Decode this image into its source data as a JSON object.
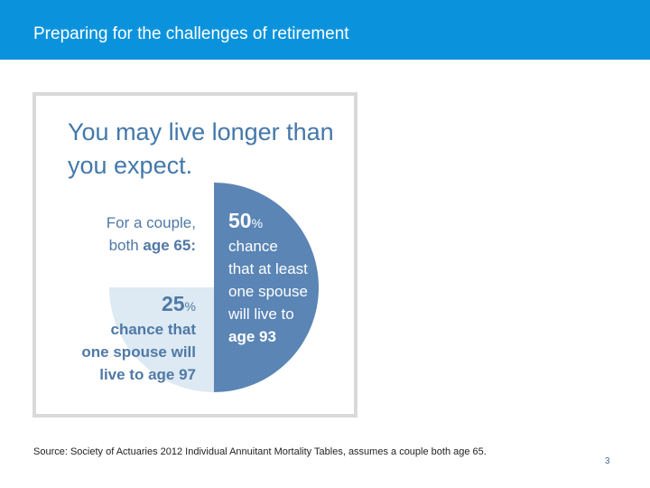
{
  "header": {
    "title": "Preparing for the challenges of retirement",
    "background_color": "#0a93dc"
  },
  "infographic": {
    "title": "You may live longer than you expect.",
    "couple_label": {
      "line1": "For a couple,",
      "line2_prefix": "both ",
      "line2_bold": "age 65:"
    },
    "fifty": {
      "value": "50",
      "unit": "%",
      "lines": [
        "chance",
        "that at least",
        "one spouse",
        "will live to"
      ],
      "last_line": "age 93",
      "fraction": 0.5,
      "color": "#5a85b5"
    },
    "twentyfive": {
      "value": "25",
      "unit": "%",
      "lines": [
        "chance that",
        "one spouse will",
        "live to age 97"
      ],
      "fraction": 0.25,
      "color": "#dde9f3"
    },
    "text_color": "#4478aa"
  },
  "footer": {
    "source": "Source: Society of Actuaries 2012 Individual Annuitant Mortality Tables, assumes a couple both age 65.",
    "page_number": "3"
  }
}
